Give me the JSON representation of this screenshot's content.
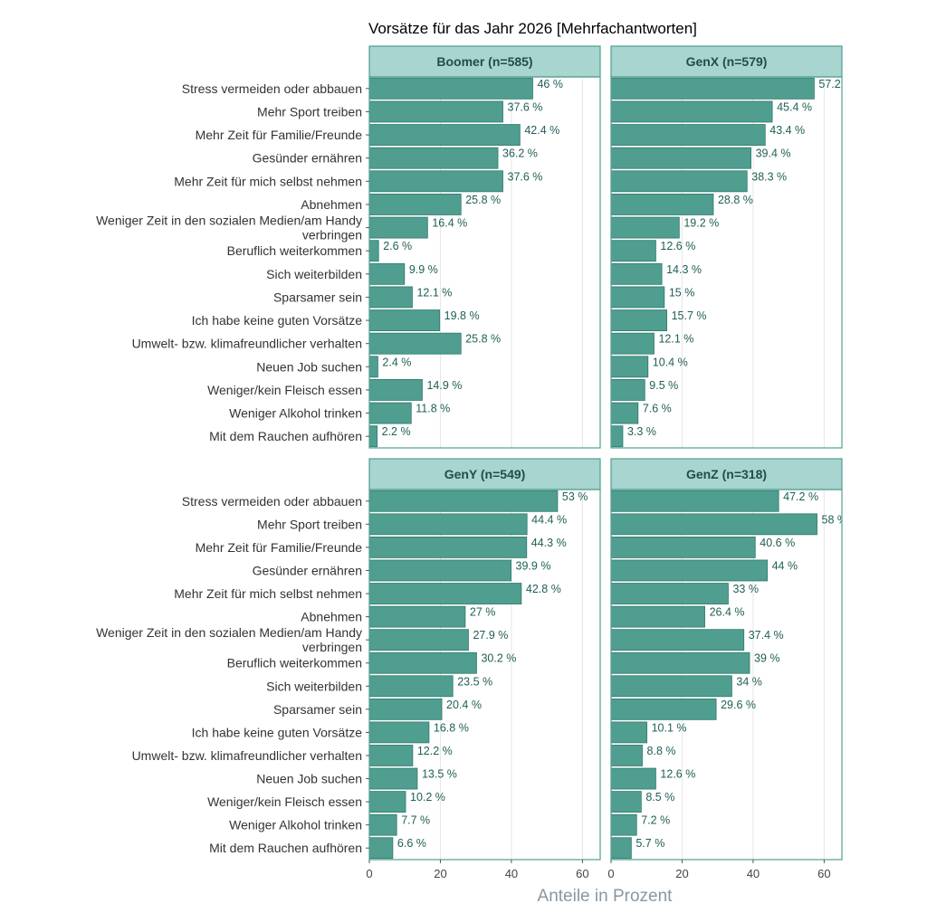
{
  "chart_data": {
    "type": "bar",
    "orientation": "horizontal",
    "title": "Vorsätze für das Jahr 2026 [Mehrfachantworten]",
    "xlabel": "Anteile in Prozent",
    "ylabel": "",
    "xlim": [
      0,
      65
    ],
    "x_ticks": [
      0,
      20,
      40,
      60
    ],
    "grid": true,
    "value_suffix": " %",
    "colors": {
      "bar": "#4f9e8f",
      "bar_border": "#2f7a6c",
      "strip_fill": "#a8d5cf",
      "strip_border": "#4f9e8f",
      "panel_border": "#4f9e8f",
      "grid": "#e6e6e6",
      "value_text": "#1f5f55"
    },
    "categories": [
      "Stress vermeiden oder abbauen",
      "Mehr Sport treiben",
      "Mehr Zeit für Familie/Freunde",
      "Gesünder ernähren",
      "Mehr Zeit für mich selbst nehmen",
      "Abnehmen",
      "Weniger Zeit in den sozialen Medien/am Handy verbringen",
      "Beruflich weiterkommen",
      "Sich weiterbilden",
      "Sparsamer sein",
      "Ich habe keine guten Vorsätze",
      "Umwelt- bzw. klimafreundlicher verhalten",
      "Neuen Job suchen",
      "Weniger/kein Fleisch essen",
      "Weniger Alkohol trinken",
      "Mit dem Rauchen aufhören"
    ],
    "category_label_lines": {
      "6": [
        "Weniger Zeit in den sozialen Medien/am Handy",
        "verbringen"
      ]
    },
    "series": [
      {
        "name": "Boomer (n=585)",
        "values": [
          46,
          37.6,
          42.4,
          36.2,
          37.6,
          25.8,
          16.4,
          2.6,
          9.9,
          12.1,
          19.8,
          25.8,
          2.4,
          14.9,
          11.8,
          2.2
        ]
      },
      {
        "name": "GenX (n=579)",
        "values": [
          57.2,
          45.4,
          43.4,
          39.4,
          38.3,
          28.8,
          19.2,
          12.6,
          14.3,
          15,
          15.7,
          12.1,
          10.4,
          9.5,
          7.6,
          3.3
        ]
      },
      {
        "name": "GenY (n=549)",
        "values": [
          53,
          44.4,
          44.3,
          39.9,
          42.8,
          27,
          27.9,
          30.2,
          23.5,
          20.4,
          16.8,
          12.2,
          13.5,
          10.2,
          7.7,
          6.6
        ]
      },
      {
        "name": "GenZ (n=318)",
        "values": [
          47.2,
          58,
          40.6,
          44,
          33,
          26.4,
          37.4,
          39,
          34,
          29.6,
          10.1,
          8.8,
          12.6,
          8.5,
          7.2,
          5.7
        ]
      }
    ],
    "panel_layout": {
      "rows": 2,
      "cols": 2,
      "order": [
        "Boomer (n=585)",
        "GenX (n=579)",
        "GenY (n=549)",
        "GenZ (n=318)"
      ]
    }
  }
}
